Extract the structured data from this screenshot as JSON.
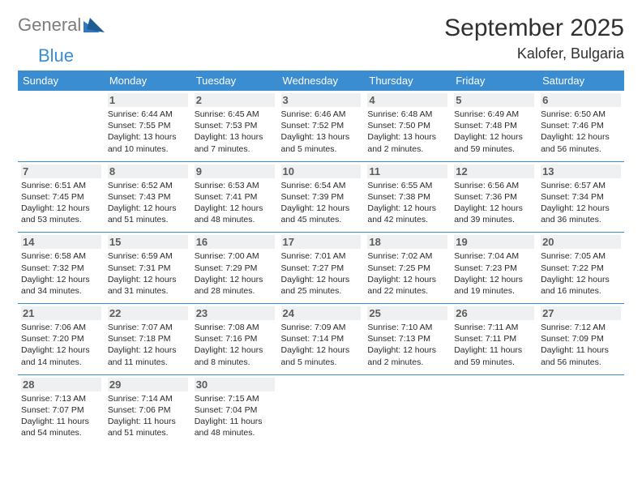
{
  "logo": {
    "text1": "General",
    "text2": "Blue",
    "triangle_color": "#2e79bd"
  },
  "title": "September 2025",
  "location": "Kalofer, Bulgaria",
  "colors": {
    "header_bg": "#3a8dd0",
    "header_text": "#ffffff",
    "row_border": "#3a8dd0",
    "daynum_bg": "#eef0f1",
    "daynum_text": "#5c5c5c",
    "body_text": "#2a2a2a",
    "title_text": "#303030"
  },
  "weekdays": [
    "Sunday",
    "Monday",
    "Tuesday",
    "Wednesday",
    "Thursday",
    "Friday",
    "Saturday"
  ],
  "weeks": [
    [
      null,
      {
        "d": "1",
        "sr": "6:44 AM",
        "ss": "7:55 PM",
        "dl": "13 hours and 10 minutes."
      },
      {
        "d": "2",
        "sr": "6:45 AM",
        "ss": "7:53 PM",
        "dl": "13 hours and 7 minutes."
      },
      {
        "d": "3",
        "sr": "6:46 AM",
        "ss": "7:52 PM",
        "dl": "13 hours and 5 minutes."
      },
      {
        "d": "4",
        "sr": "6:48 AM",
        "ss": "7:50 PM",
        "dl": "13 hours and 2 minutes."
      },
      {
        "d": "5",
        "sr": "6:49 AM",
        "ss": "7:48 PM",
        "dl": "12 hours and 59 minutes."
      },
      {
        "d": "6",
        "sr": "6:50 AM",
        "ss": "7:46 PM",
        "dl": "12 hours and 56 minutes."
      }
    ],
    [
      {
        "d": "7",
        "sr": "6:51 AM",
        "ss": "7:45 PM",
        "dl": "12 hours and 53 minutes."
      },
      {
        "d": "8",
        "sr": "6:52 AM",
        "ss": "7:43 PM",
        "dl": "12 hours and 51 minutes."
      },
      {
        "d": "9",
        "sr": "6:53 AM",
        "ss": "7:41 PM",
        "dl": "12 hours and 48 minutes."
      },
      {
        "d": "10",
        "sr": "6:54 AM",
        "ss": "7:39 PM",
        "dl": "12 hours and 45 minutes."
      },
      {
        "d": "11",
        "sr": "6:55 AM",
        "ss": "7:38 PM",
        "dl": "12 hours and 42 minutes."
      },
      {
        "d": "12",
        "sr": "6:56 AM",
        "ss": "7:36 PM",
        "dl": "12 hours and 39 minutes."
      },
      {
        "d": "13",
        "sr": "6:57 AM",
        "ss": "7:34 PM",
        "dl": "12 hours and 36 minutes."
      }
    ],
    [
      {
        "d": "14",
        "sr": "6:58 AM",
        "ss": "7:32 PM",
        "dl": "12 hours and 34 minutes."
      },
      {
        "d": "15",
        "sr": "6:59 AM",
        "ss": "7:31 PM",
        "dl": "12 hours and 31 minutes."
      },
      {
        "d": "16",
        "sr": "7:00 AM",
        "ss": "7:29 PM",
        "dl": "12 hours and 28 minutes."
      },
      {
        "d": "17",
        "sr": "7:01 AM",
        "ss": "7:27 PM",
        "dl": "12 hours and 25 minutes."
      },
      {
        "d": "18",
        "sr": "7:02 AM",
        "ss": "7:25 PM",
        "dl": "12 hours and 22 minutes."
      },
      {
        "d": "19",
        "sr": "7:04 AM",
        "ss": "7:23 PM",
        "dl": "12 hours and 19 minutes."
      },
      {
        "d": "20",
        "sr": "7:05 AM",
        "ss": "7:22 PM",
        "dl": "12 hours and 16 minutes."
      }
    ],
    [
      {
        "d": "21",
        "sr": "7:06 AM",
        "ss": "7:20 PM",
        "dl": "12 hours and 14 minutes."
      },
      {
        "d": "22",
        "sr": "7:07 AM",
        "ss": "7:18 PM",
        "dl": "12 hours and 11 minutes."
      },
      {
        "d": "23",
        "sr": "7:08 AM",
        "ss": "7:16 PM",
        "dl": "12 hours and 8 minutes."
      },
      {
        "d": "24",
        "sr": "7:09 AM",
        "ss": "7:14 PM",
        "dl": "12 hours and 5 minutes."
      },
      {
        "d": "25",
        "sr": "7:10 AM",
        "ss": "7:13 PM",
        "dl": "12 hours and 2 minutes."
      },
      {
        "d": "26",
        "sr": "7:11 AM",
        "ss": "7:11 PM",
        "dl": "11 hours and 59 minutes."
      },
      {
        "d": "27",
        "sr": "7:12 AM",
        "ss": "7:09 PM",
        "dl": "11 hours and 56 minutes."
      }
    ],
    [
      {
        "d": "28",
        "sr": "7:13 AM",
        "ss": "7:07 PM",
        "dl": "11 hours and 54 minutes."
      },
      {
        "d": "29",
        "sr": "7:14 AM",
        "ss": "7:06 PM",
        "dl": "11 hours and 51 minutes."
      },
      {
        "d": "30",
        "sr": "7:15 AM",
        "ss": "7:04 PM",
        "dl": "11 hours and 48 minutes."
      },
      null,
      null,
      null,
      null
    ]
  ],
  "labels": {
    "sunrise": "Sunrise:",
    "sunset": "Sunset:",
    "daylight": "Daylight:"
  }
}
